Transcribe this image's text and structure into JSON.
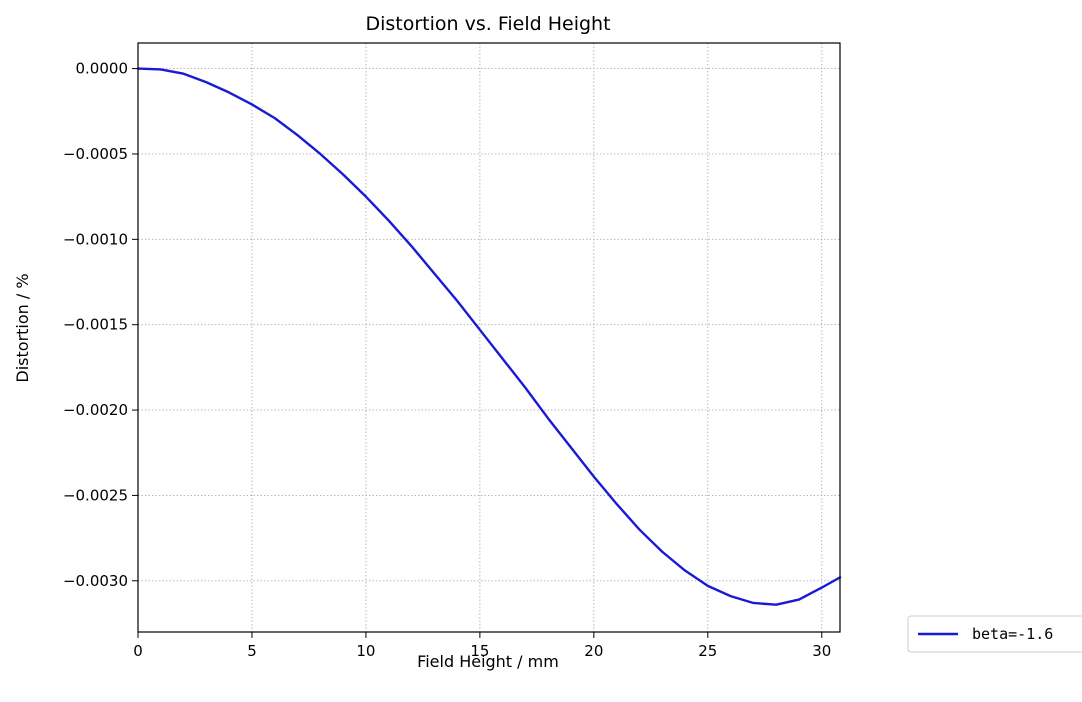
{
  "chart_data": {
    "type": "line",
    "title": "Distortion vs. Field Height",
    "xlabel": "Field Height / mm",
    "ylabel": "Distortion / %",
    "xlim": [
      0,
      30.8
    ],
    "ylim": [
      -0.0033,
      0.00015
    ],
    "xticks": [
      0,
      5,
      10,
      15,
      20,
      25,
      30
    ],
    "xtick_labels": [
      "0",
      "5",
      "10",
      "15",
      "20",
      "25",
      "30"
    ],
    "yticks": [
      0.0,
      -0.0005,
      -0.001,
      -0.0015,
      -0.002,
      -0.0025,
      -0.003
    ],
    "ytick_labels": [
      "0.0000",
      "−0.0005",
      "−0.0010",
      "−0.0015",
      "−0.0020",
      "−0.0025",
      "−0.0030"
    ],
    "grid": true,
    "legend_position": "outside-right",
    "series": [
      {
        "name": "beta=-1.6",
        "color": "#1a1ad6",
        "x": [
          0,
          1,
          2,
          3,
          4,
          5,
          6,
          7,
          8,
          9,
          10,
          11,
          12,
          13,
          14,
          15,
          16,
          17,
          18,
          19,
          20,
          21,
          22,
          23,
          24,
          25,
          26,
          27,
          28,
          29,
          30,
          30.8
        ],
        "y": [
          0.0,
          -5e-06,
          -3e-05,
          -8e-05,
          -0.00014,
          -0.00021,
          -0.00029,
          -0.00039,
          -0.0005,
          -0.00062,
          -0.00075,
          -0.00089,
          -0.00104,
          -0.0012,
          -0.00136,
          -0.00153,
          -0.0017,
          -0.00187,
          -0.00205,
          -0.00222,
          -0.00239,
          -0.00255,
          -0.0027,
          -0.00283,
          -0.00294,
          -0.00303,
          -0.00309,
          -0.00313,
          -0.00314,
          -0.00311,
          -0.00304,
          -0.00298
        ]
      }
    ]
  }
}
